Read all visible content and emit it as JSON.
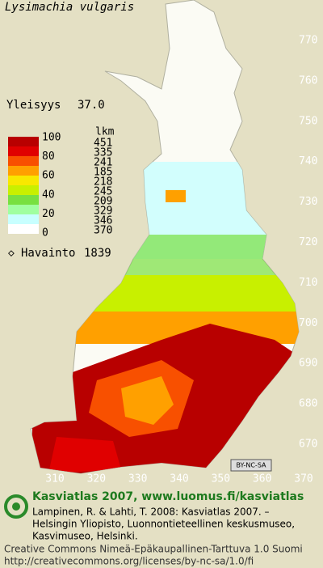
{
  "title": "Lysimachia vulgaris",
  "frequency": {
    "label": "Yleisyys",
    "value": "37.0"
  },
  "legend": {
    "header": "lkm",
    "levels": [
      100,
      80,
      60,
      40,
      20,
      0
    ],
    "bands": [
      {
        "color": "#b80000",
        "count": 451
      },
      {
        "color": "#e00000",
        "count": 335
      },
      {
        "color": "#f85000",
        "count": 241
      },
      {
        "color": "#ffa000",
        "count": 185
      },
      {
        "color": "#f8e800",
        "count": 218
      },
      {
        "color": "#c8f000",
        "count": 245
      },
      {
        "color": "#78e040",
        "count": 209
      },
      {
        "color": "#a0ffa0",
        "count": 329
      },
      {
        "color": "#c8ffff",
        "count": 346
      },
      {
        "color": "#ffffff",
        "count": 370
      }
    ]
  },
  "observations": {
    "label": "Havainto",
    "count": 1839
  },
  "grid_labels": {
    "north": [
      770,
      760,
      750,
      740,
      730,
      720,
      710,
      700,
      690,
      680,
      670
    ],
    "east": [
      310,
      320,
      330,
      340,
      350,
      360,
      370
    ]
  },
  "license_badge": "BY-NC-SA",
  "footer": {
    "site": "Kasviatlas 2007, www.luomus.fi/kasviatlas",
    "citation": [
      "Lampinen, R. & Lahti, T. 2008: Kasviatlas 2007. –",
      "Helsingin Yliopisto, Luonnontieteellinen keskusmuseo,",
      "Kasvimuseo, Helsinki."
    ],
    "license": [
      "Creative Commons Nimeä-Epäkaupallinen-Tarttuva 1.0 Suomi",
      "http://creativecommons.org/licenses/by-nc-sa/1.0/fi"
    ]
  }
}
